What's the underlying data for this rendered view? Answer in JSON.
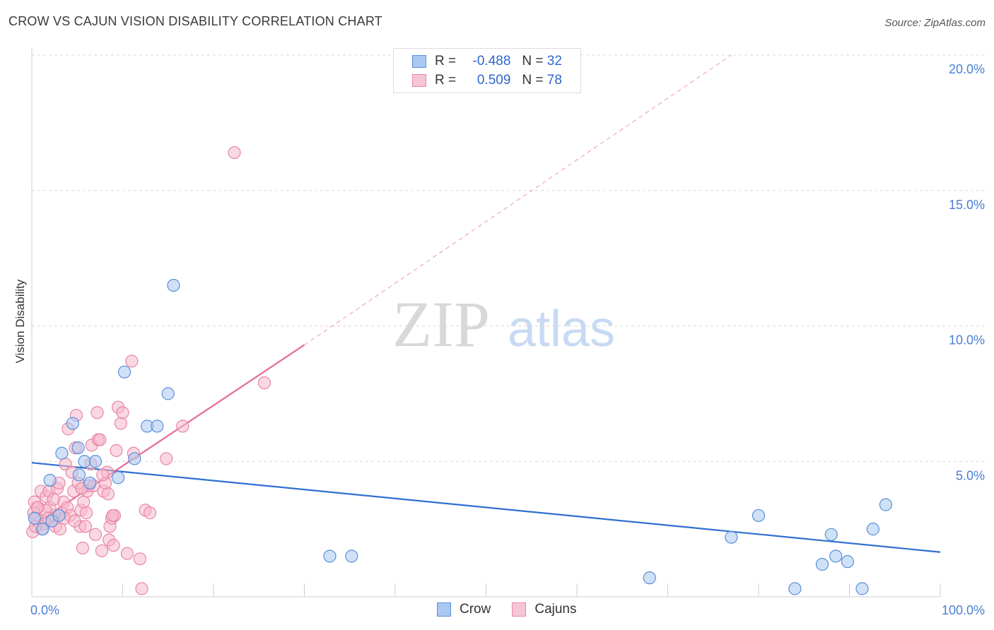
{
  "title": "CROW VS CAJUN VISION DISABILITY CORRELATION CHART",
  "source": "Source: ZipAtlas.com",
  "watermark": {
    "zip": "ZIP",
    "atlas": "atlas"
  },
  "legend": {
    "rows": [
      {
        "r_label": "R =",
        "r_value": "-0.488",
        "n_label": "N =",
        "n_value": "32"
      },
      {
        "r_label": "R =",
        "r_value": "0.509",
        "n_label": "N =",
        "n_value": "78"
      }
    ]
  },
  "bottom_legend": [
    "Crow",
    "Cajuns"
  ],
  "colors": {
    "crow_fill": "#aac8f0",
    "crow_stroke": "#5a8fd8",
    "crow_line": "#2f6fd1",
    "cajun_fill": "#f6b8ca",
    "cajun_stroke": "#e886a6",
    "cajun_line": "#e46a94",
    "grid": "#d9d9d9",
    "tick": "#4a7fd6"
  },
  "chart_data": {
    "type": "scatter",
    "title": "CROW VS CAJUN VISION DISABILITY CORRELATION CHART",
    "xlabel": "",
    "ylabel": "Vision Disability",
    "xlim": [
      0,
      100
    ],
    "ylim": [
      0,
      20
    ],
    "x_tick_labels": [
      "0.0%",
      "100.0%"
    ],
    "y_tick_labels": [
      "5.0%",
      "10.0%",
      "15.0%",
      "20.0%"
    ],
    "y_ticks": [
      5,
      10,
      15,
      20
    ],
    "grid": true,
    "series": [
      {
        "name": "Crow",
        "trend": {
          "x": [
            0,
            100
          ],
          "y": [
            4.95,
            1.65
          ],
          "dashed_extension": false
        },
        "points": [
          [
            0.3,
            2.9
          ],
          [
            1.2,
            2.5
          ],
          [
            2.0,
            4.3
          ],
          [
            2.2,
            2.8
          ],
          [
            3.0,
            3.0
          ],
          [
            3.3,
            5.3
          ],
          [
            4.5,
            6.4
          ],
          [
            5.1,
            5.5
          ],
          [
            5.2,
            4.5
          ],
          [
            5.8,
            5.0
          ],
          [
            6.4,
            4.2
          ],
          [
            7.0,
            5.0
          ],
          [
            9.5,
            4.4
          ],
          [
            10.2,
            8.3
          ],
          [
            11.3,
            5.1
          ],
          [
            12.7,
            6.3
          ],
          [
            13.8,
            6.3
          ],
          [
            15.0,
            7.5
          ],
          [
            15.6,
            11.5
          ],
          [
            32.8,
            1.5
          ],
          [
            35.2,
            1.5
          ],
          [
            68.0,
            0.7
          ],
          [
            77.0,
            2.2
          ],
          [
            80.0,
            3.0
          ],
          [
            84.0,
            0.3
          ],
          [
            87.0,
            1.2
          ],
          [
            88.0,
            2.3
          ],
          [
            88.5,
            1.5
          ],
          [
            89.8,
            1.3
          ],
          [
            91.4,
            0.3
          ],
          [
            92.6,
            2.5
          ],
          [
            94.0,
            3.4
          ]
        ]
      },
      {
        "name": "Cajuns",
        "trend": {
          "x": [
            0,
            30
          ],
          "y": [
            2.6,
            9.3
          ],
          "dashed_extension": true,
          "extension_to": [
            77,
            20.0
          ]
        },
        "points": [
          [
            0.1,
            2.4
          ],
          [
            0.3,
            3.5
          ],
          [
            0.5,
            2.9
          ],
          [
            0.7,
            3.3
          ],
          [
            1.0,
            3.9
          ],
          [
            1.3,
            2.7
          ],
          [
            1.6,
            3.7
          ],
          [
            1.9,
            3.9
          ],
          [
            2.2,
            2.8
          ],
          [
            2.5,
            3.0
          ],
          [
            2.6,
            2.6
          ],
          [
            2.8,
            4.0
          ],
          [
            3.0,
            4.2
          ],
          [
            3.1,
            2.5
          ],
          [
            3.3,
            3.1
          ],
          [
            3.5,
            3.5
          ],
          [
            3.7,
            4.9
          ],
          [
            3.9,
            3.3
          ],
          [
            4.0,
            6.2
          ],
          [
            4.2,
            3.0
          ],
          [
            4.4,
            4.6
          ],
          [
            4.6,
            3.9
          ],
          [
            4.8,
            5.5
          ],
          [
            4.9,
            6.7
          ],
          [
            5.1,
            4.2
          ],
          [
            5.3,
            2.6
          ],
          [
            5.4,
            3.2
          ],
          [
            5.6,
            1.8
          ],
          [
            5.7,
            3.5
          ],
          [
            5.9,
            2.6
          ],
          [
            6.1,
            3.9
          ],
          [
            6.3,
            4.1
          ],
          [
            6.5,
            4.9
          ],
          [
            6.6,
            5.6
          ],
          [
            6.8,
            4.1
          ],
          [
            7.0,
            2.3
          ],
          [
            7.2,
            6.8
          ],
          [
            7.3,
            5.8
          ],
          [
            7.5,
            5.8
          ],
          [
            7.7,
            1.7
          ],
          [
            7.9,
            3.9
          ],
          [
            8.1,
            4.2
          ],
          [
            8.3,
            4.6
          ],
          [
            8.4,
            3.8
          ],
          [
            8.5,
            2.1
          ],
          [
            8.6,
            2.6
          ],
          [
            8.8,
            2.9
          ],
          [
            9.0,
            1.9
          ],
          [
            9.1,
            3.0
          ],
          [
            9.3,
            5.4
          ],
          [
            9.5,
            7.0
          ],
          [
            9.8,
            6.4
          ],
          [
            10.0,
            6.8
          ],
          [
            10.5,
            1.6
          ],
          [
            11.0,
            8.7
          ],
          [
            11.2,
            5.3
          ],
          [
            11.9,
            1.4
          ],
          [
            12.1,
            0.3
          ],
          [
            12.5,
            3.2
          ],
          [
            13.0,
            3.1
          ],
          [
            14.8,
            5.1
          ],
          [
            16.6,
            6.3
          ],
          [
            22.3,
            16.4
          ],
          [
            25.6,
            7.9
          ],
          [
            1.1,
            2.5
          ],
          [
            2.0,
            3.3
          ],
          [
            3.6,
            2.9
          ],
          [
            4.7,
            2.8
          ],
          [
            6.0,
            3.1
          ],
          [
            7.8,
            4.5
          ],
          [
            0.4,
            2.6
          ],
          [
            1.5,
            3.2
          ],
          [
            2.4,
            3.6
          ],
          [
            5.5,
            4.0
          ],
          [
            8.9,
            3.0
          ],
          [
            0.2,
            3.1
          ],
          [
            0.6,
            3.3
          ],
          [
            1.8,
            2.9
          ]
        ]
      }
    ]
  }
}
